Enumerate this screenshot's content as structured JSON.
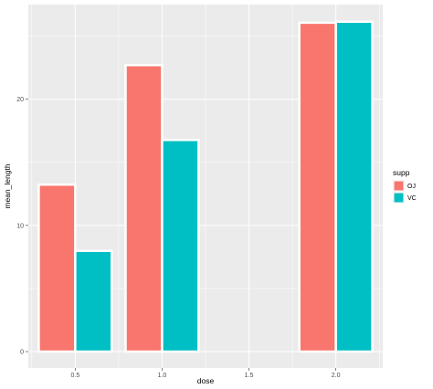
{
  "chart_data": {
    "type": "bar",
    "xlabel": "dose",
    "ylabel": "mean_length",
    "x_ticks": [
      "0.5",
      "1.0",
      "1.5",
      "2.0"
    ],
    "y_ticks": [
      "0",
      "10",
      "20"
    ],
    "xlim": [
      0.23,
      2.27
    ],
    "ylim": [
      -1.3,
      27.5
    ],
    "bar_width": 0.21,
    "grid": true,
    "legend_position": "right",
    "legend_title": "supp",
    "series": [
      {
        "name": "OJ",
        "color": "#F8766D",
        "x": [
          0.5,
          1.0,
          2.0
        ],
        "values": [
          13.23,
          22.7,
          26.06
        ]
      },
      {
        "name": "VC",
        "color": "#00BFC4",
        "x": [
          0.5,
          1.0,
          2.0
        ],
        "values": [
          7.98,
          16.77,
          26.14
        ]
      }
    ]
  }
}
